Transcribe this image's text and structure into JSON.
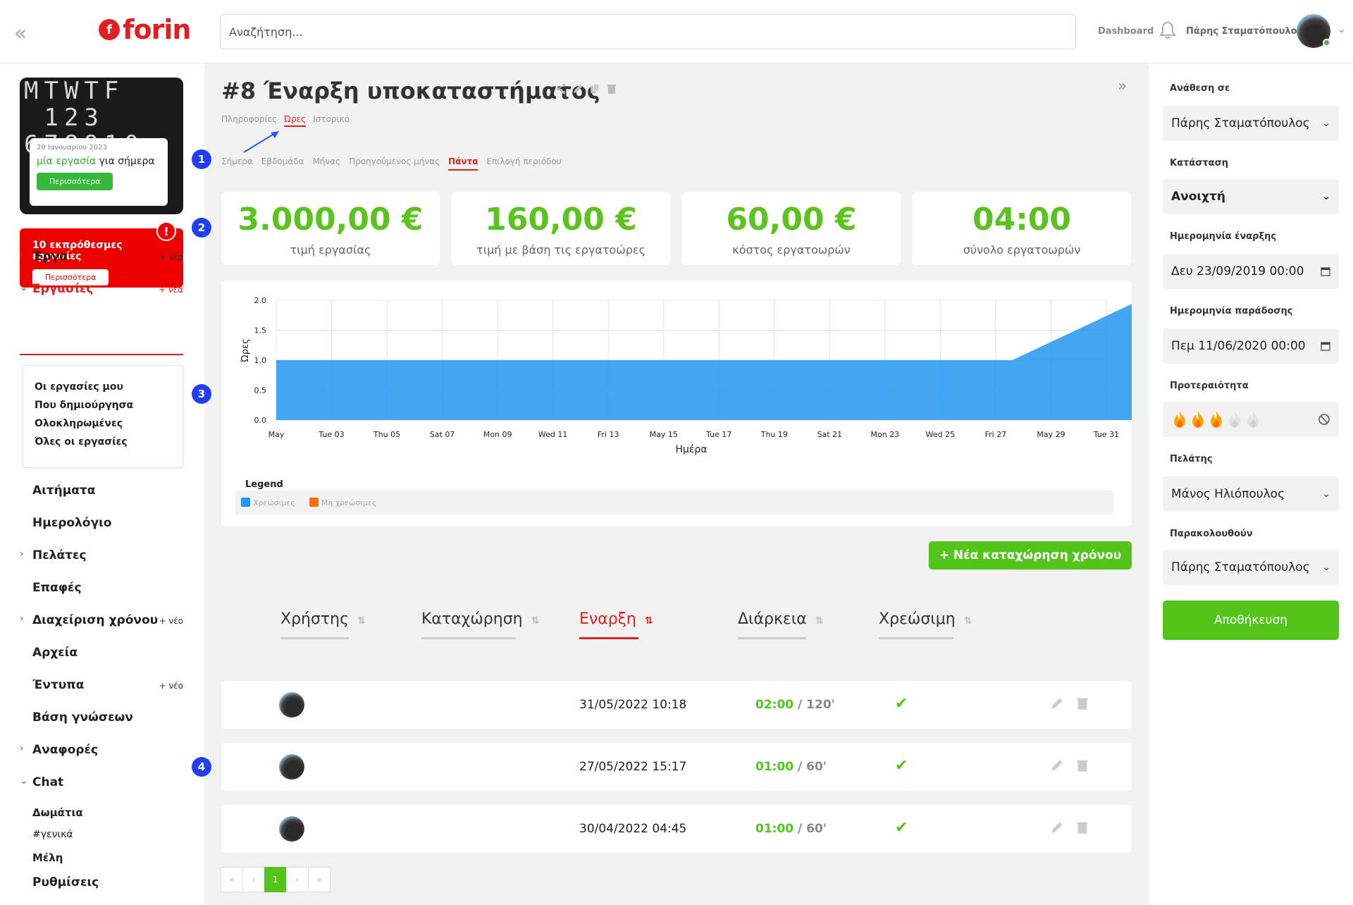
{
  "topbar": {
    "collapse_icon": "«",
    "logo_text": "forin",
    "search_placeholder": "Αναζήτηση...",
    "dashboard": "Dashboard",
    "user_name": "Πάρης Σταματόπουλος"
  },
  "sidebar": {
    "calendar_digits": "MTWTF\n 123\n678910\n",
    "calendar_date": "20 Ιανουαρίου 2023",
    "calendar_msg_green": "μία εργασία",
    "calendar_msg_rest": " για σήμερα",
    "calendar_more": "Περισσότερα",
    "overdue_text": "10 εκπρόθεσμες εργασίες",
    "overdue_more": "Περισσότερα",
    "overdue_badge": "!",
    "plus_new_m": "+ νέο",
    "plus_new_f": "+ νέα",
    "nav": {
      "projects": "Έργα",
      "tasks": "Εργασίες",
      "requests": "Αιτήματα",
      "calendar": "Ημερολόγιο",
      "clients": "Πελάτες",
      "contacts": "Επαφές",
      "time_mgmt": "Διαχείριση χρόνου",
      "files": "Αρχεία",
      "forms": "Έντυπα",
      "kb": "Βάση γνώσεων",
      "reports": "Αναφορές",
      "chat": "Chat",
      "rooms": "Δωμάτια",
      "general": "#γενικά",
      "members": "Μέλη",
      "settings": "Ρυθμίσεις"
    },
    "task_sub": [
      "Οι εργασίες μου",
      "Που δημιούργησα",
      "Ολοκληρωμένες",
      "Όλες οι εργασίες"
    ]
  },
  "main": {
    "title": "#8 Έναρξη υποκαταστήματος",
    "tabs": [
      "Πληροφορίες",
      "Ώρες",
      "Ιστορικό"
    ],
    "active_tab": 1,
    "periods": [
      "Σήμερα",
      "Εβδομάδα",
      "Μήνας",
      "Προηγούμενος μήνας",
      "Πάντα",
      "Επιλογή περιόδου"
    ],
    "active_period": 4,
    "markers": [
      "1",
      "2",
      "3",
      "4"
    ],
    "stats": [
      {
        "value": "3.000,00 €",
        "label": "τιμή εργασίας"
      },
      {
        "value": "160,00 €",
        "label": "τιμή με βάση τις εργατοώρες"
      },
      {
        "value": "60,00 €",
        "label": "κόστος εργατοωρών"
      },
      {
        "value": "04:00",
        "label": "σύνολο εργατοωρών"
      }
    ],
    "legend_title": "Legend",
    "legend": [
      {
        "label": "Χρεώσιμες",
        "color": "#2196f3"
      },
      {
        "label": "Μη χρεώσιμες",
        "color": "#ff6d00"
      }
    ],
    "new_entry": "+ Νέα καταχώρηση χρόνου",
    "columns": [
      "Χρήστης",
      "Καταχώρηση",
      "Εναρξη",
      "Διάρκεια",
      "Χρεώσιμη"
    ],
    "sort_icon": "⇅",
    "sort_active_icon": "⇅",
    "active_column": 2,
    "rows": [
      {
        "start": "31/05/2022 10:18",
        "dur": "02:00",
        "mins": " / 120'",
        "billable": "✔"
      },
      {
        "start": "27/05/2022 15:17",
        "dur": "01:00",
        "mins": " / 60'",
        "billable": "✔"
      },
      {
        "start": "30/04/2022 04:45",
        "dur": "01:00",
        "mins": " / 60'",
        "billable": "✔"
      }
    ],
    "pager": [
      "«",
      "‹",
      "1",
      "›",
      "»"
    ],
    "active_page": 2
  },
  "chart_data": {
    "type": "area",
    "ylabel": "Ώρες",
    "xlabel": "Ημέρα",
    "ylim": [
      0,
      2
    ],
    "yticks": [
      "2.0",
      "1.5",
      "1.0",
      "0.5",
      "0.0"
    ],
    "x": [
      "May",
      "Tue 03",
      "Thu 05",
      "Sat 07",
      "Mon 09",
      "Wed 11",
      "Fri 13",
      "May 15",
      "Tue 17",
      "Thu 19",
      "Sat 21",
      "Mon 23",
      "Wed 25",
      "Fri 27",
      "May 29",
      "Tue 31"
    ],
    "series": [
      {
        "name": "Χρεώσιμες",
        "points": [
          [
            0,
            1
          ],
          [
            13.3,
            1
          ],
          [
            15.6,
            2
          ]
        ]
      },
      {
        "name": "Μη χρεώσιμες",
        "points": []
      }
    ],
    "grid": true,
    "legend": "bottom-left"
  },
  "right": {
    "assign_label": "Ανάθεση σε",
    "assign_value": "Πάρης Σταματόπουλος",
    "status_label": "Κατάσταση",
    "status_value": "Ανοιχτή",
    "start_label": "Ημερομηνία έναρξης",
    "start_value": "Δευ 23/09/2019 00:00",
    "due_label": "Ημερομηνία παράδοσης",
    "due_value": "Πεμ 11/06/2020 00:00",
    "priority_label": "Προτεραιότητα",
    "priority_level": 3,
    "priority_max": 5,
    "client_label": "Πελάτης",
    "client_value": "Μάνος Ηλιόπουλος",
    "watch_label": "Παρακολουθούν",
    "watch_value": "Πάρης Σταματόπουλος",
    "save": "Αποθήκευση"
  }
}
